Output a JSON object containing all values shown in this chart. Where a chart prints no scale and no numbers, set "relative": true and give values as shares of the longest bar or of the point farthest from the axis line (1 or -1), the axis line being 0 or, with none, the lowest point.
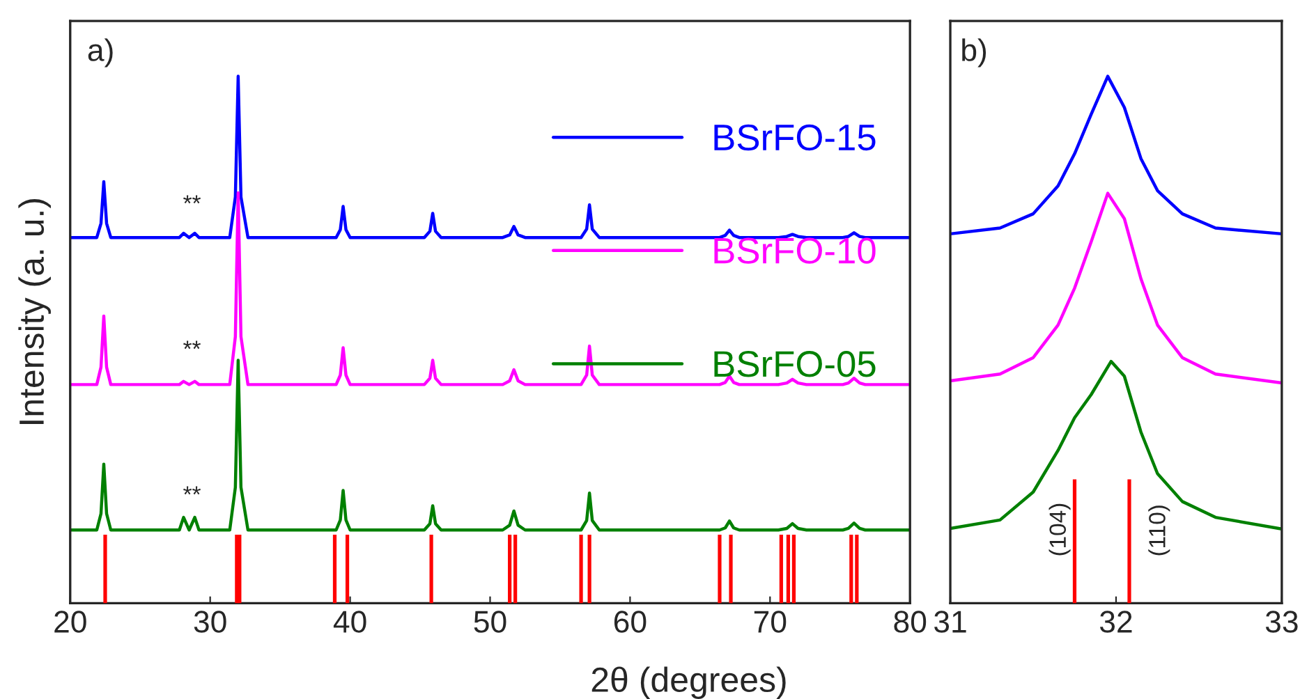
{
  "chart_data": [
    {
      "type": "line",
      "relative": true,
      "xlabel": "2θ (degrees)",
      "ylabel": "Intensity (a. u.)",
      "xlim": [
        20,
        80
      ],
      "xticks": [
        20,
        30,
        40,
        50,
        60,
        70,
        80
      ],
      "tick_labels": "x",
      "legend": "right",
      "grid": false,
      "annotations": [
        "a)",
        "**",
        "**",
        "**"
      ],
      "series": [
        {
          "name": "BSrFO-15",
          "color": "#0000ff",
          "x": [
            20,
            21.9,
            22.2,
            22.4,
            22.6,
            22.9,
            27.8,
            28.1,
            28.5,
            28.9,
            29.2,
            31.4,
            31.8,
            32.0,
            32.2,
            32.7,
            39.0,
            39.3,
            39.5,
            39.7,
            40.0,
            45.3,
            45.7,
            45.9,
            46.1,
            46.5,
            50.9,
            51.4,
            51.7,
            52.0,
            52.5,
            56.5,
            56.9,
            57.1,
            57.3,
            57.8,
            66.4,
            66.8,
            67.1,
            67.4,
            67.8,
            70.6,
            71.2,
            71.6,
            72.0,
            72.6,
            75.2,
            75.6,
            76.0,
            76.4,
            76.8,
            80
          ],
          "values": [
            0.694,
            0.694,
            0.721,
            0.8,
            0.721,
            0.694,
            0.694,
            0.702,
            0.694,
            0.702,
            0.694,
            0.694,
            0.771,
            1.0,
            0.771,
            0.694,
            0.694,
            0.709,
            0.753,
            0.709,
            0.694,
            0.694,
            0.706,
            0.74,
            0.706,
            0.694,
            0.694,
            0.699,
            0.715,
            0.699,
            0.694,
            0.694,
            0.71,
            0.756,
            0.71,
            0.694,
            0.694,
            0.698,
            0.708,
            0.698,
            0.694,
            0.694,
            0.696,
            0.7,
            0.696,
            0.694,
            0.694,
            0.696,
            0.703,
            0.696,
            0.694,
            0.694
          ]
        },
        {
          "name": "BSrFO-10",
          "color": "#ff00ff",
          "x": [
            20,
            21.9,
            22.2,
            22.4,
            22.6,
            22.9,
            27.8,
            28.1,
            28.5,
            28.9,
            29.2,
            31.4,
            31.8,
            32.0,
            32.2,
            32.7,
            39.0,
            39.3,
            39.5,
            39.7,
            40.0,
            45.3,
            45.7,
            45.9,
            46.1,
            46.5,
            50.9,
            51.4,
            51.7,
            52.0,
            52.5,
            56.5,
            56.9,
            57.1,
            57.3,
            57.8,
            66.4,
            66.8,
            67.1,
            67.4,
            67.8,
            70.6,
            71.2,
            71.6,
            72.0,
            72.6,
            75.2,
            75.6,
            76.0,
            76.4,
            76.8,
            80
          ],
          "values": [
            0.415,
            0.415,
            0.448,
            0.545,
            0.448,
            0.415,
            0.415,
            0.421,
            0.415,
            0.421,
            0.415,
            0.415,
            0.506,
            0.779,
            0.506,
            0.415,
            0.415,
            0.433,
            0.485,
            0.433,
            0.415,
            0.415,
            0.427,
            0.461,
            0.427,
            0.415,
            0.415,
            0.422,
            0.443,
            0.422,
            0.415,
            0.415,
            0.433,
            0.488,
            0.433,
            0.415,
            0.415,
            0.419,
            0.431,
            0.419,
            0.415,
            0.415,
            0.418,
            0.425,
            0.418,
            0.415,
            0.415,
            0.418,
            0.427,
            0.418,
            0.415,
            0.415
          ]
        },
        {
          "name": "BSrFO-05",
          "color": "#008000",
          "x": [
            20,
            21.9,
            22.2,
            22.4,
            22.6,
            22.9,
            27.8,
            28.1,
            28.5,
            28.9,
            29.2,
            31.4,
            31.8,
            32.0,
            32.2,
            32.7,
            39.0,
            39.3,
            39.5,
            39.7,
            40.0,
            45.3,
            45.7,
            45.9,
            46.1,
            46.5,
            50.9,
            51.4,
            51.7,
            52.0,
            52.5,
            56.5,
            56.9,
            57.1,
            57.3,
            57.8,
            66.4,
            66.8,
            67.1,
            67.4,
            67.8,
            70.6,
            71.2,
            71.6,
            72.0,
            72.6,
            75.2,
            75.6,
            76.0,
            76.4,
            76.8,
            80
          ],
          "values": [
            0.139,
            0.139,
            0.17,
            0.264,
            0.17,
            0.139,
            0.139,
            0.163,
            0.139,
            0.163,
            0.139,
            0.139,
            0.22,
            0.461,
            0.22,
            0.139,
            0.139,
            0.158,
            0.214,
            0.158,
            0.139,
            0.139,
            0.151,
            0.185,
            0.151,
            0.139,
            0.139,
            0.148,
            0.175,
            0.148,
            0.139,
            0.139,
            0.157,
            0.209,
            0.157,
            0.139,
            0.139,
            0.143,
            0.156,
            0.143,
            0.139,
            0.139,
            0.142,
            0.151,
            0.142,
            0.139,
            0.139,
            0.142,
            0.152,
            0.142,
            0.139,
            0.139
          ]
        },
        {
          "type": "bar",
          "color": "#ff0000",
          "x": [
            22.5,
            31.9,
            32.1,
            38.9,
            39.8,
            45.8,
            51.4,
            51.8,
            56.5,
            57.1,
            66.4,
            67.2,
            70.8,
            71.3,
            71.7,
            75.8,
            76.2
          ],
          "values": [
            0.13,
            0.13,
            0.13,
            0.13,
            0.13,
            0.13,
            0.13,
            0.13,
            0.13,
            0.13,
            0.13,
            0.13,
            0.13,
            0.13,
            0.13,
            0.13,
            0.13
          ]
        }
      ]
    },
    {
      "type": "line",
      "relative": true,
      "xlim": [
        31,
        33
      ],
      "xticks": [
        31,
        32,
        33
      ],
      "tick_labels": "x",
      "grid": false,
      "annotations": [
        "b)",
        "(104)",
        "(110)"
      ],
      "series": [
        {
          "color": "#0000ff",
          "x": [
            31,
            31.3,
            31.5,
            31.65,
            31.75,
            31.85,
            31.95,
            32.05,
            32.15,
            32.25,
            32.4,
            32.6,
            33
          ],
          "values": [
            0.701,
            0.712,
            0.739,
            0.792,
            0.853,
            0.928,
            1.0,
            0.941,
            0.844,
            0.783,
            0.739,
            0.712,
            0.701
          ]
        },
        {
          "color": "#ff00ff",
          "x": [
            31,
            31.3,
            31.5,
            31.65,
            31.75,
            31.85,
            31.95,
            32.05,
            32.15,
            32.25,
            32.4,
            32.6,
            33
          ],
          "values": [
            0.422,
            0.435,
            0.466,
            0.528,
            0.598,
            0.686,
            0.778,
            0.73,
            0.616,
            0.528,
            0.466,
            0.435,
            0.418
          ]
        },
        {
          "color": "#008000",
          "x": [
            31,
            31.3,
            31.5,
            31.65,
            31.75,
            31.85,
            31.97,
            32.05,
            32.15,
            32.25,
            32.4,
            32.6,
            33
          ],
          "values": [
            0.142,
            0.158,
            0.211,
            0.29,
            0.352,
            0.396,
            0.459,
            0.431,
            0.325,
            0.246,
            0.193,
            0.163,
            0.141
          ]
        },
        {
          "type": "bar",
          "color": "#ff0000",
          "x": [
            31.75,
            32.08
          ],
          "values": [
            0.235,
            0.235
          ]
        }
      ]
    }
  ]
}
